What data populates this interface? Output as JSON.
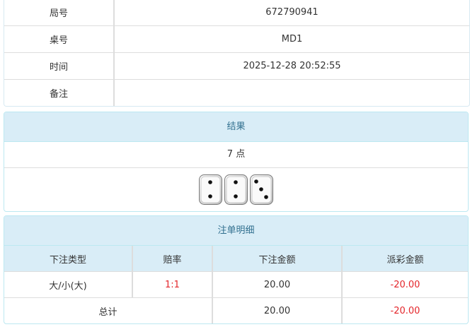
{
  "info": [
    {
      "label": "局号",
      "value": "672790941"
    },
    {
      "label": "桌号",
      "value": "MD1"
    },
    {
      "label": "时间",
      "value": "2025-12-28 20:52:55"
    },
    {
      "label": "备注",
      "value": ""
    }
  ],
  "result": {
    "title": "结果",
    "points": "7 点",
    "dice": [
      2,
      2,
      3
    ]
  },
  "bets": {
    "title": "注单明细",
    "columns": [
      "下注类型",
      "赔率",
      "下注金额",
      "派彩金额"
    ],
    "rows": [
      {
        "type": "大/小(大)",
        "odds": "1:1",
        "amount": "20.00",
        "payout": "-20.00"
      }
    ],
    "total": {
      "label": "总计",
      "amount": "20.00",
      "payout": "-20.00"
    }
  },
  "colors": {
    "header_bg": "#d9edf7",
    "header_text": "#31708f",
    "negative": "#e4262b"
  }
}
